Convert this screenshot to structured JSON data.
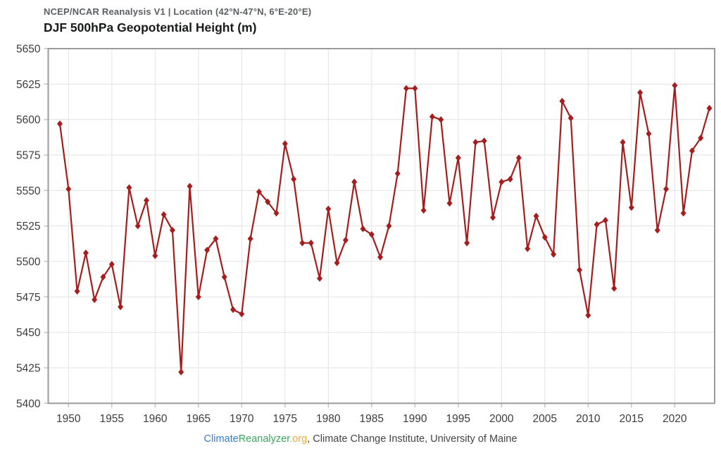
{
  "header": {
    "source_line": "NCEP/NCAR Reanalysis V1 | Location (42°N-47°N, 6°E-20°E)",
    "title": "DJF 500hPa Geopotential Height (m)"
  },
  "footer": {
    "brand_climate": "Climate",
    "brand_reanalyzer": "Reanalyzer",
    "brand_org": ".org",
    "suffix": ", Climate Change Institute, University of Maine",
    "colors": {
      "climate": "#3b7cc4",
      "reanalyzer": "#3da45e",
      "org": "#f2a53a",
      "suffix": "#454545"
    }
  },
  "chart_data": {
    "type": "line",
    "title": "DJF 500hPa Geopotential Height (m)",
    "subtitle": "NCEP/NCAR Reanalysis V1 | Location (42°N-47°N, 6°E-20°E)",
    "xlabel": "",
    "ylabel": "",
    "ylim": [
      5400,
      5650
    ],
    "yticks": [
      5400,
      5425,
      5450,
      5475,
      5500,
      5525,
      5550,
      5575,
      5600,
      5625,
      5650
    ],
    "xticks": [
      1950,
      1955,
      1960,
      1965,
      1970,
      1975,
      1980,
      1985,
      1990,
      1995,
      2000,
      2005,
      2010,
      2015,
      2020
    ],
    "grid": true,
    "legend": "none",
    "marker": "diamond",
    "series_name": "DJF 500hPa Geopotential Height (m)",
    "x": [
      1949,
      1950,
      1951,
      1952,
      1953,
      1954,
      1955,
      1956,
      1957,
      1958,
      1959,
      1960,
      1961,
      1962,
      1963,
      1964,
      1965,
      1966,
      1967,
      1968,
      1969,
      1970,
      1971,
      1972,
      1973,
      1974,
      1975,
      1976,
      1977,
      1978,
      1979,
      1980,
      1981,
      1982,
      1983,
      1984,
      1985,
      1986,
      1987,
      1988,
      1989,
      1990,
      1991,
      1992,
      1993,
      1994,
      1995,
      1996,
      1997,
      1998,
      1999,
      2000,
      2001,
      2002,
      2003,
      2004,
      2005,
      2006,
      2007,
      2008,
      2009,
      2010,
      2011,
      2012,
      2013,
      2014,
      2015,
      2016,
      2017,
      2018,
      2019,
      2020,
      2021,
      2022,
      2023,
      2024
    ],
    "values": [
      5597,
      5551,
      5479,
      5506,
      5473,
      5489,
      5498,
      5468,
      5552,
      5525,
      5543,
      5504,
      5533,
      5522,
      5422,
      5553,
      5475,
      5508,
      5516,
      5489,
      5466,
      5463,
      5516,
      5549,
      5542,
      5534,
      5583,
      5558,
      5513,
      5513,
      5488,
      5537,
      5499,
      5515,
      5556,
      5523,
      5519,
      5503,
      5525,
      5562,
      5622,
      5622,
      5536,
      5602,
      5600,
      5541,
      5573,
      5513,
      5584,
      5585,
      5531,
      5556,
      5558,
      5573,
      5509,
      5532,
      5517,
      5505,
      5613,
      5601,
      5494,
      5462,
      5526,
      5529,
      5481,
      5584,
      5538,
      5619,
      5590,
      5522,
      5551,
      5624,
      5534,
      5578,
      5587,
      5608
    ],
    "colors": {
      "line": "#a51d1d",
      "grid": "#e3e3e3",
      "border": "#9b9b9b",
      "tick": "#c2c2c2",
      "tick_text": "#3c3c3c"
    }
  }
}
